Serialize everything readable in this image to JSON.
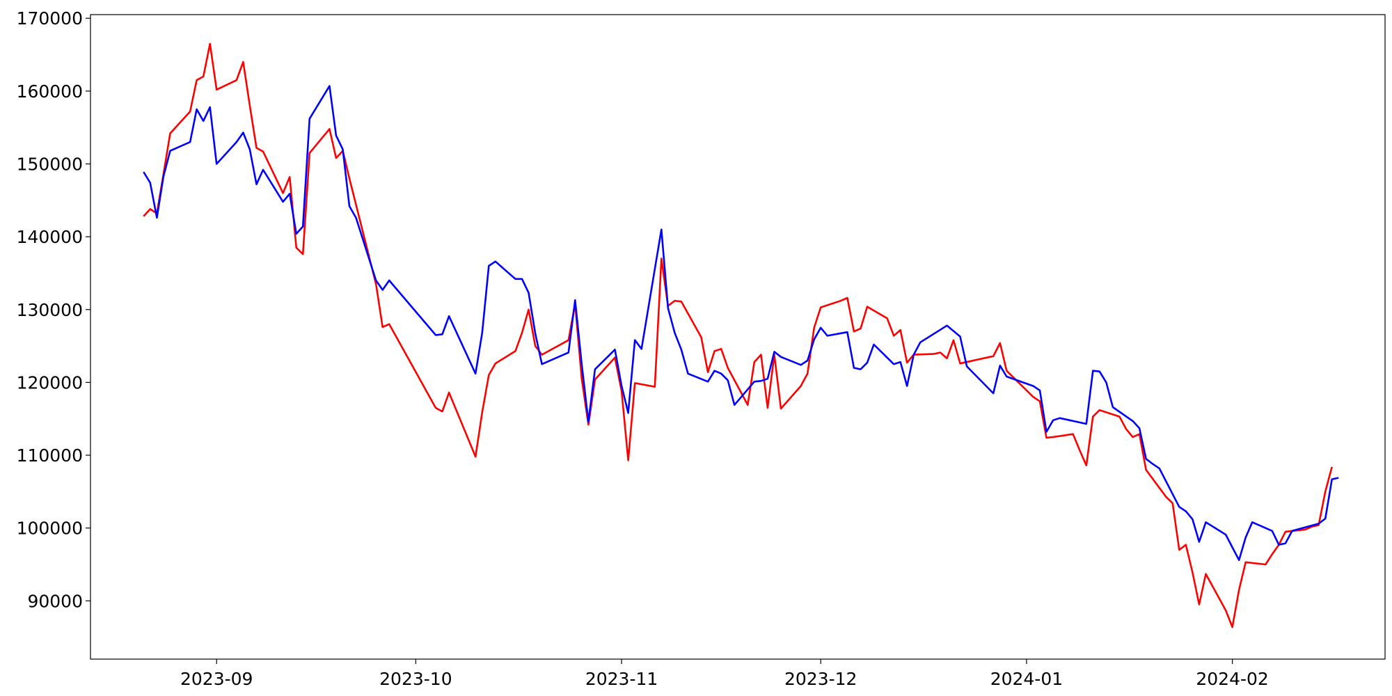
{
  "chart_data": {
    "type": "line",
    "title": "",
    "xlabel": "",
    "ylabel": "",
    "grid": false,
    "xlim": [
      "2023-08-13",
      "2024-02-24"
    ],
    "ylim": [
      82000,
      170500
    ],
    "xticks": [
      {
        "date": "2023-09-01",
        "label": "2023-09"
      },
      {
        "date": "2023-10-01",
        "label": "2023-10"
      },
      {
        "date": "2023-11-01",
        "label": "2023-11"
      },
      {
        "date": "2023-12-01",
        "label": "2023-12"
      },
      {
        "date": "2024-01-01",
        "label": "2024-01"
      },
      {
        "date": "2024-02-01",
        "label": "2024-02"
      }
    ],
    "yticks": [
      {
        "value": 90000,
        "label": "90000"
      },
      {
        "value": 100000,
        "label": "100000"
      },
      {
        "value": 110000,
        "label": "110000"
      },
      {
        "value": 120000,
        "label": "120000"
      },
      {
        "value": 130000,
        "label": "130000"
      },
      {
        "value": 140000,
        "label": "140000"
      },
      {
        "value": 150000,
        "label": "150000"
      },
      {
        "value": 160000,
        "label": "160000"
      },
      {
        "value": 170000,
        "label": "170000"
      }
    ],
    "series": [
      {
        "color": "#ff0000",
        "points": [
          [
            "2023-08-21",
            142800
          ],
          [
            "2023-08-22",
            143800
          ],
          [
            "2023-08-23",
            143200
          ],
          [
            "2023-08-24",
            148600
          ],
          [
            "2023-08-25",
            154200
          ],
          [
            "2023-08-28",
            157200
          ],
          [
            "2023-08-29",
            161500
          ],
          [
            "2023-08-30",
            162000
          ],
          [
            "2023-08-31",
            166500
          ],
          [
            "2023-09-01",
            160200
          ],
          [
            "2023-09-04",
            161500
          ],
          [
            "2023-09-05",
            164000
          ],
          [
            "2023-09-06",
            158000
          ],
          [
            "2023-09-07",
            152200
          ],
          [
            "2023-09-08",
            151700
          ],
          [
            "2023-09-11",
            146000
          ],
          [
            "2023-09-12",
            148200
          ],
          [
            "2023-09-13",
            138500
          ],
          [
            "2023-09-14",
            137600
          ],
          [
            "2023-09-15",
            151500
          ],
          [
            "2023-09-18",
            154800
          ],
          [
            "2023-09-19",
            150800
          ],
          [
            "2023-09-20",
            151800
          ],
          [
            "2023-09-21",
            148000
          ],
          [
            "2023-09-25",
            133500
          ],
          [
            "2023-09-26",
            127600
          ],
          [
            "2023-09-27",
            128000
          ],
          [
            "2023-10-04",
            116500
          ],
          [
            "2023-10-05",
            116000
          ],
          [
            "2023-10-06",
            118600
          ],
          [
            "2023-10-10",
            109800
          ],
          [
            "2023-10-11",
            115900
          ],
          [
            "2023-10-12",
            121000
          ],
          [
            "2023-10-13",
            122600
          ],
          [
            "2023-10-16",
            124300
          ],
          [
            "2023-10-17",
            126800
          ],
          [
            "2023-10-18",
            130000
          ],
          [
            "2023-10-19",
            125000
          ],
          [
            "2023-10-20",
            123800
          ],
          [
            "2023-10-24",
            125800
          ],
          [
            "2023-10-25",
            130800
          ],
          [
            "2023-10-26",
            120500
          ],
          [
            "2023-10-27",
            114200
          ],
          [
            "2023-10-28",
            120400
          ],
          [
            "2023-10-31",
            123400
          ],
          [
            "2023-11-01",
            118800
          ],
          [
            "2023-11-02",
            109300
          ],
          [
            "2023-11-03",
            119900
          ],
          [
            "2023-11-06",
            119400
          ],
          [
            "2023-11-07",
            137000
          ],
          [
            "2023-11-08",
            130500
          ],
          [
            "2023-11-09",
            131200
          ],
          [
            "2023-11-10",
            131100
          ],
          [
            "2023-11-13",
            126200
          ],
          [
            "2023-11-14",
            121400
          ],
          [
            "2023-11-15",
            124300
          ],
          [
            "2023-11-16",
            124600
          ],
          [
            "2023-11-17",
            122000
          ],
          [
            "2023-11-20",
            116900
          ],
          [
            "2023-11-21",
            122800
          ],
          [
            "2023-11-22",
            123800
          ],
          [
            "2023-11-23",
            116500
          ],
          [
            "2023-11-24",
            123800
          ],
          [
            "2023-11-25",
            116400
          ],
          [
            "2023-11-28",
            119500
          ],
          [
            "2023-11-29",
            121200
          ],
          [
            "2023-11-30",
            127500
          ],
          [
            "2023-12-01",
            130300
          ],
          [
            "2023-12-04",
            131200
          ],
          [
            "2023-12-05",
            131600
          ],
          [
            "2023-12-06",
            127000
          ],
          [
            "2023-12-07",
            127400
          ],
          [
            "2023-12-08",
            130400
          ],
          [
            "2023-12-11",
            128800
          ],
          [
            "2023-12-12",
            126400
          ],
          [
            "2023-12-13",
            127200
          ],
          [
            "2023-12-14",
            122700
          ],
          [
            "2023-12-15",
            123800
          ],
          [
            "2023-12-18",
            123900
          ],
          [
            "2023-12-19",
            124100
          ],
          [
            "2023-12-20",
            123300
          ],
          [
            "2023-12-21",
            125800
          ],
          [
            "2023-12-22",
            122600
          ],
          [
            "2023-12-27",
            123600
          ],
          [
            "2023-12-28",
            125400
          ],
          [
            "2023-12-29",
            121600
          ],
          [
            "2024-01-02",
            118000
          ],
          [
            "2024-01-03",
            117400
          ],
          [
            "2024-01-04",
            112400
          ],
          [
            "2024-01-05",
            112500
          ],
          [
            "2024-01-08",
            112900
          ],
          [
            "2024-01-09",
            110700
          ],
          [
            "2024-01-10",
            108600
          ],
          [
            "2024-01-11",
            115300
          ],
          [
            "2024-01-12",
            116200
          ],
          [
            "2024-01-15",
            115300
          ],
          [
            "2024-01-16",
            113600
          ],
          [
            "2024-01-17",
            112500
          ],
          [
            "2024-01-18",
            112900
          ],
          [
            "2024-01-19",
            108000
          ],
          [
            "2024-01-22",
            104300
          ],
          [
            "2024-01-23",
            103400
          ],
          [
            "2024-01-24",
            97000
          ],
          [
            "2024-01-25",
            97700
          ],
          [
            "2024-01-26",
            93900
          ],
          [
            "2024-01-27",
            89500
          ],
          [
            "2024-01-28",
            93700
          ],
          [
            "2024-01-31",
            88700
          ],
          [
            "2024-02-01",
            86400
          ],
          [
            "2024-02-02",
            91500
          ],
          [
            "2024-02-03",
            95300
          ],
          [
            "2024-02-06",
            95000
          ],
          [
            "2024-02-07",
            96400
          ],
          [
            "2024-02-08",
            97700
          ],
          [
            "2024-02-09",
            99500
          ],
          [
            "2024-02-12",
            99800
          ],
          [
            "2024-02-13",
            100200
          ],
          [
            "2024-02-14",
            100400
          ],
          [
            "2024-02-15",
            105000
          ],
          [
            "2024-02-16",
            108400
          ]
        ]
      },
      {
        "color": "#0000ff",
        "points": [
          [
            "2023-08-21",
            148900
          ],
          [
            "2023-08-22",
            147400
          ],
          [
            "2023-08-23",
            142600
          ],
          [
            "2023-08-24",
            148300
          ],
          [
            "2023-08-25",
            151800
          ],
          [
            "2023-08-28",
            153000
          ],
          [
            "2023-08-29",
            157500
          ],
          [
            "2023-08-30",
            155900
          ],
          [
            "2023-08-31",
            157800
          ],
          [
            "2023-09-01",
            150000
          ],
          [
            "2023-09-04",
            153000
          ],
          [
            "2023-09-05",
            154300
          ],
          [
            "2023-09-06",
            152000
          ],
          [
            "2023-09-07",
            147200
          ],
          [
            "2023-09-08",
            149200
          ],
          [
            "2023-09-11",
            144800
          ],
          [
            "2023-09-12",
            145900
          ],
          [
            "2023-09-13",
            140400
          ],
          [
            "2023-09-14",
            141400
          ],
          [
            "2023-09-15",
            156200
          ],
          [
            "2023-09-18",
            160700
          ],
          [
            "2023-09-19",
            153900
          ],
          [
            "2023-09-20",
            152000
          ],
          [
            "2023-09-21",
            144200
          ],
          [
            "2023-09-22",
            142600
          ],
          [
            "2023-09-25",
            134000
          ],
          [
            "2023-09-26",
            132700
          ],
          [
            "2023-09-27",
            134000
          ],
          [
            "2023-10-04",
            126500
          ],
          [
            "2023-10-05",
            126600
          ],
          [
            "2023-10-06",
            129100
          ],
          [
            "2023-10-10",
            121200
          ],
          [
            "2023-10-11",
            126800
          ],
          [
            "2023-10-12",
            136000
          ],
          [
            "2023-10-13",
            136600
          ],
          [
            "2023-10-16",
            134200
          ],
          [
            "2023-10-17",
            134200
          ],
          [
            "2023-10-18",
            132300
          ],
          [
            "2023-10-19",
            126700
          ],
          [
            "2023-10-20",
            122500
          ],
          [
            "2023-10-24",
            124100
          ],
          [
            "2023-10-25",
            131300
          ],
          [
            "2023-10-26",
            122500
          ],
          [
            "2023-10-27",
            114600
          ],
          [
            "2023-10-28",
            121800
          ],
          [
            "2023-10-31",
            124500
          ],
          [
            "2023-11-01",
            119500
          ],
          [
            "2023-11-02",
            115800
          ],
          [
            "2023-11-03",
            125800
          ],
          [
            "2023-11-04",
            124600
          ],
          [
            "2023-11-07",
            141000
          ],
          [
            "2023-11-08",
            130200
          ],
          [
            "2023-11-09",
            126800
          ],
          [
            "2023-11-10",
            124500
          ],
          [
            "2023-11-11",
            121200
          ],
          [
            "2023-11-14",
            120100
          ],
          [
            "2023-11-15",
            121600
          ],
          [
            "2023-11-16",
            121200
          ],
          [
            "2023-11-17",
            120300
          ],
          [
            "2023-11-18",
            116900
          ],
          [
            "2023-11-21",
            120100
          ],
          [
            "2023-11-22",
            120200
          ],
          [
            "2023-11-23",
            120500
          ],
          [
            "2023-11-24",
            124200
          ],
          [
            "2023-11-25",
            123500
          ],
          [
            "2023-11-28",
            122400
          ],
          [
            "2023-11-29",
            123000
          ],
          [
            "2023-11-30",
            125900
          ],
          [
            "2023-12-01",
            127500
          ],
          [
            "2023-12-02",
            126400
          ],
          [
            "2023-12-05",
            126900
          ],
          [
            "2023-12-06",
            122000
          ],
          [
            "2023-12-07",
            121800
          ],
          [
            "2023-12-08",
            122700
          ],
          [
            "2023-12-09",
            125200
          ],
          [
            "2023-12-12",
            122500
          ],
          [
            "2023-12-13",
            122800
          ],
          [
            "2023-12-14",
            119500
          ],
          [
            "2023-12-15",
            123800
          ],
          [
            "2023-12-16",
            125500
          ],
          [
            "2023-12-20",
            127800
          ],
          [
            "2023-12-22",
            126300
          ],
          [
            "2023-12-23",
            122200
          ],
          [
            "2023-12-27",
            118500
          ],
          [
            "2023-12-28",
            122300
          ],
          [
            "2023-12-29",
            120800
          ],
          [
            "2024-01-02",
            119500
          ],
          [
            "2024-01-03",
            118900
          ],
          [
            "2024-01-04",
            113200
          ],
          [
            "2024-01-05",
            114800
          ],
          [
            "2024-01-06",
            115100
          ],
          [
            "2024-01-10",
            114300
          ],
          [
            "2024-01-11",
            121600
          ],
          [
            "2024-01-12",
            121500
          ],
          [
            "2024-01-13",
            120000
          ],
          [
            "2024-01-14",
            116600
          ],
          [
            "2024-01-17",
            114700
          ],
          [
            "2024-01-18",
            113700
          ],
          [
            "2024-01-19",
            109500
          ],
          [
            "2024-01-20",
            108800
          ],
          [
            "2024-01-21",
            108200
          ],
          [
            "2024-01-24",
            102900
          ],
          [
            "2024-01-25",
            102300
          ],
          [
            "2024-01-26",
            101200
          ],
          [
            "2024-01-27",
            98100
          ],
          [
            "2024-01-28",
            100800
          ],
          [
            "2024-01-31",
            99100
          ],
          [
            "2024-02-02",
            95600
          ],
          [
            "2024-02-03",
            98700
          ],
          [
            "2024-02-04",
            100800
          ],
          [
            "2024-02-07",
            99600
          ],
          [
            "2024-02-08",
            97700
          ],
          [
            "2024-02-09",
            97900
          ],
          [
            "2024-02-10",
            99600
          ],
          [
            "2024-02-14",
            100600
          ],
          [
            "2024-02-15",
            101300
          ],
          [
            "2024-02-16",
            106700
          ],
          [
            "2024-02-17",
            106900
          ]
        ]
      }
    ]
  }
}
